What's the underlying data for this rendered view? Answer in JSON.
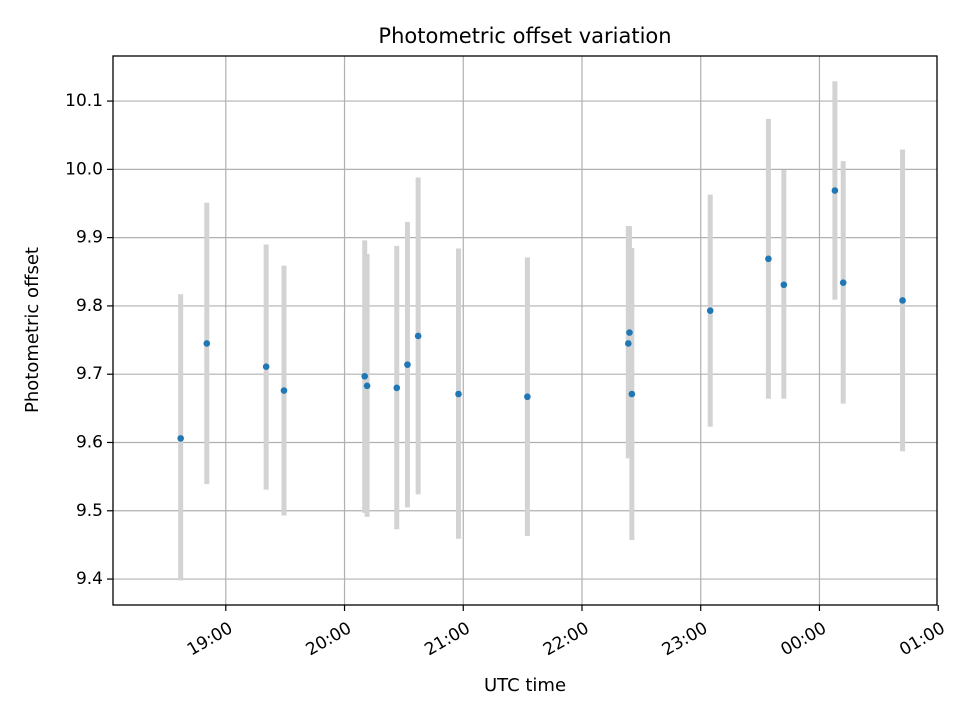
{
  "chart_data": {
    "type": "scatter",
    "title": "Photometric offset variation",
    "xlabel": "UTC time",
    "ylabel": "Photometric offset",
    "x_unit": "UTC time (hours; 24+ = after midnight)",
    "xlim": [
      18.05,
      24.99
    ],
    "ylim": [
      9.362,
      10.166
    ],
    "x_ticks": [
      {
        "value": 19,
        "label": "19:00"
      },
      {
        "value": 20,
        "label": "20:00"
      },
      {
        "value": 21,
        "label": "21:00"
      },
      {
        "value": 22,
        "label": "22:00"
      },
      {
        "value": 23,
        "label": "23:00"
      },
      {
        "value": 24,
        "label": "00:00"
      },
      {
        "value": 25,
        "label": "01:00"
      }
    ],
    "y_ticks": [
      {
        "value": 9.4,
        "label": "9.4"
      },
      {
        "value": 9.5,
        "label": "9.5"
      },
      {
        "value": 9.6,
        "label": "9.6"
      },
      {
        "value": 9.7,
        "label": "9.7"
      },
      {
        "value": 9.8,
        "label": "9.8"
      },
      {
        "value": 9.9,
        "label": "9.9"
      },
      {
        "value": 10.0,
        "label": "10.0"
      },
      {
        "value": 10.1,
        "label": "10.1"
      }
    ],
    "grid": true,
    "colors": {
      "marker": "#1f77b4",
      "errorbar": "#d3d3d3"
    },
    "points": [
      {
        "x": 18.62,
        "y": 9.606,
        "ylow": 9.398,
        "yhigh": 9.817
      },
      {
        "x": 18.84,
        "y": 9.745,
        "ylow": 9.539,
        "yhigh": 9.951
      },
      {
        "x": 19.34,
        "y": 9.711,
        "ylow": 9.531,
        "yhigh": 9.89
      },
      {
        "x": 19.49,
        "y": 9.676,
        "ylow": 9.493,
        "yhigh": 9.859
      },
      {
        "x": 20.17,
        "y": 9.697,
        "ylow": 9.497,
        "yhigh": 9.896
      },
      {
        "x": 20.19,
        "y": 9.683,
        "ylow": 9.491,
        "yhigh": 9.876
      },
      {
        "x": 20.44,
        "y": 9.68,
        "ylow": 9.473,
        "yhigh": 9.888
      },
      {
        "x": 20.53,
        "y": 9.714,
        "ylow": 9.505,
        "yhigh": 9.923
      },
      {
        "x": 20.62,
        "y": 9.756,
        "ylow": 9.524,
        "yhigh": 9.988
      },
      {
        "x": 20.96,
        "y": 9.671,
        "ylow": 9.459,
        "yhigh": 9.884
      },
      {
        "x": 21.54,
        "y": 9.667,
        "ylow": 9.463,
        "yhigh": 9.871
      },
      {
        "x": 22.39,
        "y": 9.745,
        "ylow": 9.577,
        "yhigh": 9.917
      },
      {
        "x": 22.4,
        "y": 9.761,
        "ylow": 9.577,
        "yhigh": 9.917
      },
      {
        "x": 22.42,
        "y": 9.671,
        "ylow": 9.457,
        "yhigh": 9.885
      },
      {
        "x": 23.08,
        "y": 9.793,
        "ylow": 9.623,
        "yhigh": 9.963
      },
      {
        "x": 23.57,
        "y": 9.869,
        "ylow": 9.664,
        "yhigh": 10.074
      },
      {
        "x": 23.7,
        "y": 9.831,
        "ylow": 9.664,
        "yhigh": 9.999
      },
      {
        "x": 24.13,
        "y": 9.969,
        "ylow": 9.809,
        "yhigh": 10.129
      },
      {
        "x": 24.2,
        "y": 9.834,
        "ylow": 9.657,
        "yhigh": 10.012
      },
      {
        "x": 24.7,
        "y": 9.808,
        "ylow": 9.587,
        "yhigh": 10.029
      }
    ]
  }
}
